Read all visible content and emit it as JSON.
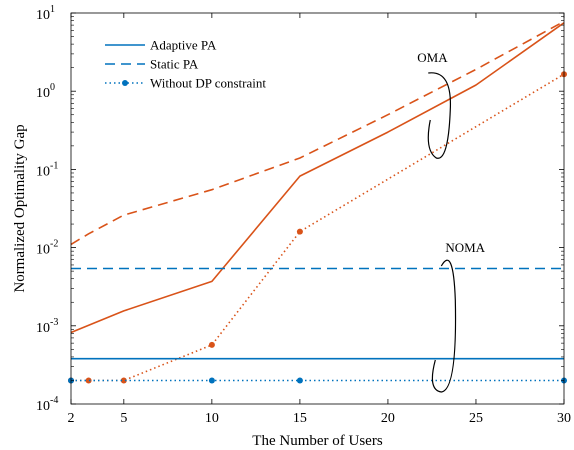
{
  "chart_data": {
    "type": "line",
    "title": "",
    "xlabel": "The Number of Users",
    "ylabel": "Normalized Optimality Gap",
    "xlim": [
      2,
      30
    ],
    "ylim": [
      0.0001,
      10
    ],
    "y_scale": "log",
    "grid": false,
    "legend_position": "top-left",
    "x_ticks": [
      2,
      5,
      10,
      15,
      20,
      25,
      30
    ],
    "x_tick_labels": [
      "2",
      "5",
      "10",
      "15",
      "20",
      "25",
      "30"
    ],
    "y_ticks": [
      0.0001,
      0.001,
      0.01,
      0.1,
      1,
      10
    ],
    "y_tick_labels": [
      {
        "base": "10",
        "exp": "-4"
      },
      {
        "base": "10",
        "exp": "-3"
      },
      {
        "base": "10",
        "exp": "-2"
      },
      {
        "base": "10",
        "exp": "-1"
      },
      {
        "base": "10",
        "exp": "0"
      },
      {
        "base": "10",
        "exp": "1"
      }
    ],
    "legend": [
      {
        "label": "Adaptive PA",
        "style": "solid",
        "marker": false
      },
      {
        "label": "Static PA",
        "style": "dashed",
        "marker": false
      },
      {
        "label": "Without DP constraint",
        "style": "dotted",
        "marker": true
      }
    ],
    "series": [
      {
        "group": "OMA",
        "style": "solid",
        "color": "#d95319",
        "marker": false,
        "x": [
          2,
          5,
          10,
          15,
          20,
          25,
          30
        ],
        "y": [
          0.00082,
          0.00155,
          0.0037,
          0.082,
          0.3,
          1.2,
          7.5
        ]
      },
      {
        "group": "OMA",
        "style": "dashed",
        "color": "#d95319",
        "marker": false,
        "x": [
          2,
          3,
          5,
          10,
          15,
          20,
          25,
          30
        ],
        "y": [
          0.011,
          0.015,
          0.026,
          0.055,
          0.14,
          0.5,
          1.9,
          7.8
        ]
      },
      {
        "group": "OMA",
        "style": "dotted",
        "color": "#d95319",
        "marker": true,
        "x": [
          2,
          3,
          5,
          10,
          15,
          30
        ],
        "y": [
          0.0002,
          0.0002,
          0.0002,
          0.00057,
          0.016,
          1.65
        ]
      },
      {
        "group": "NOMA",
        "style": "solid",
        "color": "#0072bd",
        "marker": false,
        "x": [
          2,
          30
        ],
        "y": [
          0.00038,
          0.00038
        ]
      },
      {
        "group": "NOMA",
        "style": "dashed",
        "color": "#0072bd",
        "marker": false,
        "x": [
          2,
          30
        ],
        "y": [
          0.0054,
          0.0054
        ]
      },
      {
        "group": "NOMA",
        "style": "dotted",
        "color": "#0072bd",
        "marker": true,
        "x": [
          2,
          10,
          15,
          30
        ],
        "y": [
          0.0002,
          0.0002,
          0.0002,
          0.0002
        ]
      }
    ],
    "annotations": [
      {
        "text": "OMA",
        "x": 23.3,
        "y": 2.5
      },
      {
        "text": "NOMA",
        "x": 23.3,
        "y": 0.0085
      }
    ],
    "colors": {
      "oma": "#d95319",
      "noma": "#0072bd",
      "legend_line": "#0072bd",
      "axis": "#000000"
    }
  }
}
